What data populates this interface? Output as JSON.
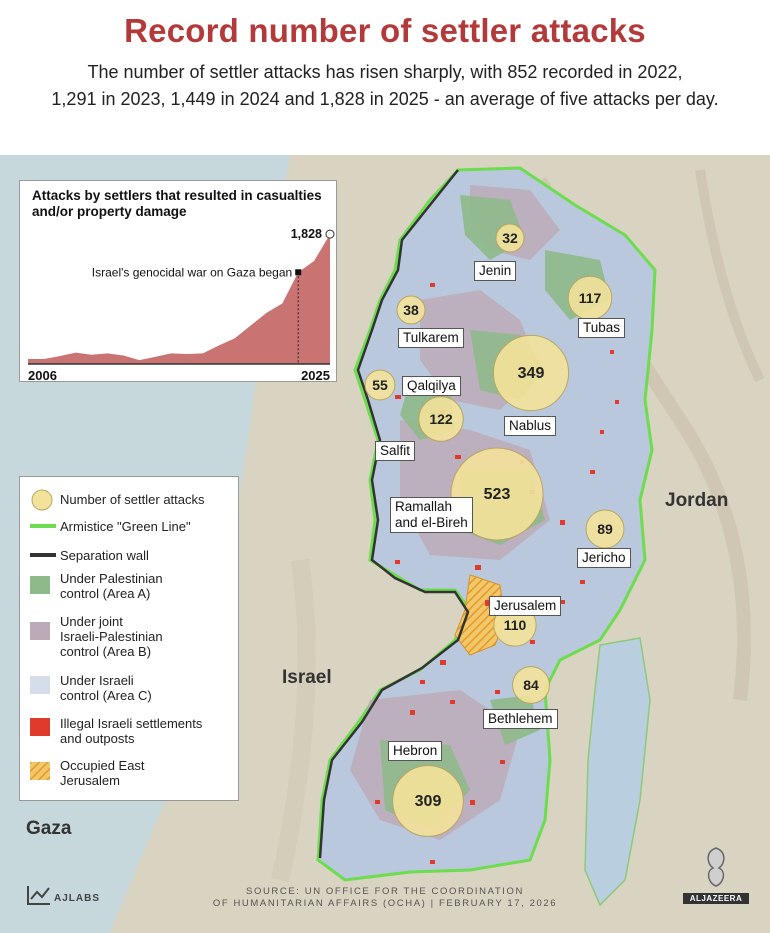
{
  "header": {
    "title": "Record number of settler attacks",
    "subtitle_line1": "The number of settler attacks has risen sharply, with 852 recorded in 2022,",
    "subtitle_line2": "1,291 in 2023, 1,449 in 2024 and 1,828 in 2025 - an average of five attacks per day."
  },
  "inset": {
    "title": "Attacks by settlers that resulted in casualties and/or property damage",
    "annotation": "Israel's genocidal war on Gaza began",
    "end_value_label": "1,828",
    "x_start_label": "2006",
    "x_end_label": "2025"
  },
  "chart_data": {
    "type": "area",
    "x": [
      2006,
      2007,
      2008,
      2009,
      2010,
      2011,
      2012,
      2013,
      2014,
      2015,
      2016,
      2017,
      2018,
      2019,
      2020,
      2021,
      2022,
      2023,
      2024,
      2025
    ],
    "values": [
      70,
      70,
      110,
      160,
      130,
      150,
      120,
      55,
      100,
      150,
      140,
      150,
      260,
      360,
      540,
      720,
      852,
      1291,
      1449,
      1828
    ],
    "color": "#c46464",
    "event_x": 2023,
    "ylim": [
      0,
      1900
    ]
  },
  "regions": [
    {
      "name": "Jenin",
      "attacks": "32",
      "value": 32
    },
    {
      "name": "Tubas",
      "attacks": "117",
      "value": 117
    },
    {
      "name": "Tulkarem",
      "attacks": "38",
      "value": 38
    },
    {
      "name": "Qalqilya",
      "attacks": "55",
      "value": 55
    },
    {
      "name": "Nablus",
      "attacks": "349",
      "value": 349
    },
    {
      "name": "Salfit",
      "attacks": "122",
      "value": 122
    },
    {
      "name": "Ramallah and el-Bireh",
      "attacks": "523",
      "value": 523
    },
    {
      "name": "Jericho",
      "attacks": "89",
      "value": 89
    },
    {
      "name": "Jerusalem",
      "attacks": "110",
      "value": 110
    },
    {
      "name": "Bethlehem",
      "attacks": "84",
      "value": 84
    },
    {
      "name": "Hebron",
      "attacks": "309",
      "value": 309
    }
  ],
  "labels": {
    "jenin": "Jenin",
    "tubas": "Tubas",
    "tulkarem": "Tulkarem",
    "qalqilya": "Qalqilya",
    "nablus": "Nablus",
    "salfit": "Salfit",
    "ramallah_1": "Ramallah",
    "ramallah_2": "and el-Bireh",
    "jericho": "Jericho",
    "jerusalem": "Jerusalem",
    "bethlehem": "Bethlehem",
    "hebron": "Hebron"
  },
  "countries": {
    "jordan": "Jordan",
    "israel": "Israel",
    "gaza": "Gaza"
  },
  "legend": {
    "attacks": "Number of settler attacks",
    "green_line": "Armistice \"Green Line\"",
    "wall": "Separation wall",
    "area_a_1": "Under Palestinian",
    "area_a_2": "control (Area A)",
    "area_b_1": "Under joint",
    "area_b_2": "Israeli-Palestinian",
    "area_b_3": "control (Area B)",
    "area_c_1": "Under Israeli",
    "area_c_2": "control (Area C)",
    "settlements_1": "Illegal Israeli settlements",
    "settlements_2": "and outposts",
    "east_jerusalem_1": "Occupied East",
    "east_jerusalem_2": "Jerusalem"
  },
  "colors": {
    "circle_fill": "#f3e29a",
    "circle_stroke": "#b9a660",
    "area_a": "#8fb98a",
    "area_b": "#bcaab8",
    "area_c": "#b9c8dc",
    "green_line": "#6edc4f",
    "wall": "#333333",
    "settlement": "#e03a2c",
    "east_jerusalem": "#f2b54a",
    "title": "#b33a3a"
  },
  "footer": {
    "source_line1": "SOURCE:  UN OFFICE FOR THE COORDINATION",
    "source_line2": "OF HUMANITARIAN AFFAIRS (OCHA)  |  FEBRUARY 17, 2026",
    "brand": "AJLABS",
    "logo_text": "ALJAZEERA"
  }
}
